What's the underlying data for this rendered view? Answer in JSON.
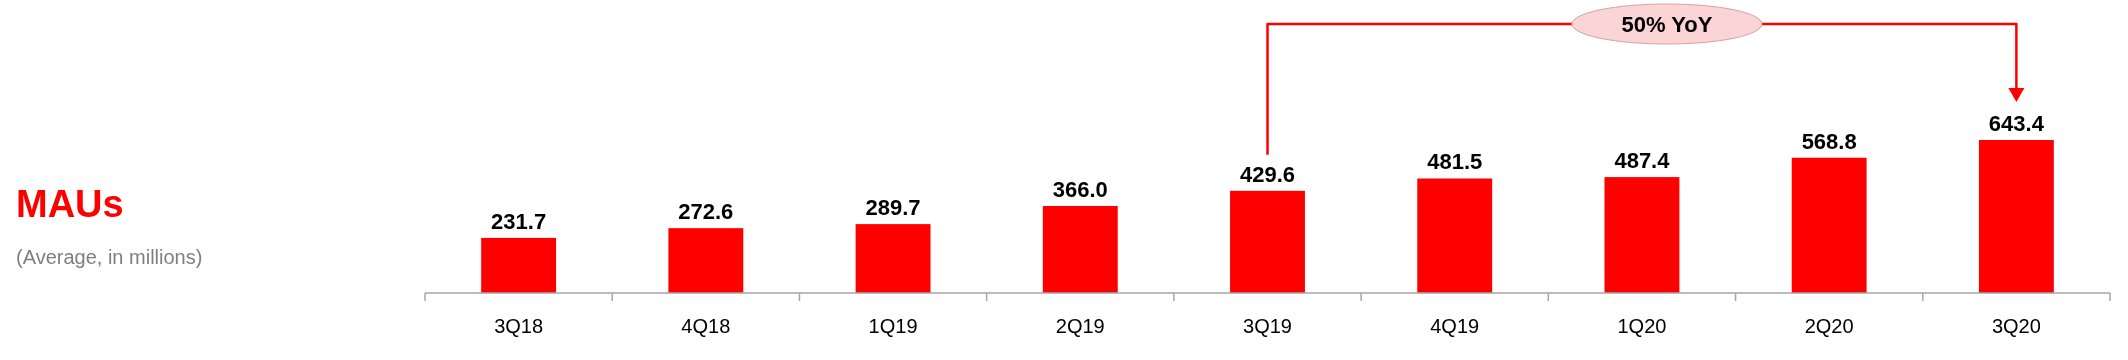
{
  "chart_data": {
    "type": "bar",
    "title": "MAUs",
    "subtitle": "(Average, in millions)",
    "categories": [
      "3Q18",
      "4Q18",
      "1Q19",
      "2Q19",
      "3Q19",
      "4Q19",
      "1Q20",
      "2Q20",
      "3Q20"
    ],
    "values": [
      231.7,
      272.6,
      289.7,
      366.0,
      429.6,
      481.5,
      487.4,
      568.8,
      643.4
    ],
    "value_labels": [
      "231.7",
      "272.6",
      "289.7",
      "366.0",
      "429.6",
      "481.5",
      "487.4",
      "568.8",
      "643.4"
    ],
    "color": "#ff0000",
    "tick_labels": "x",
    "annotations": [
      "50% YoY"
    ]
  }
}
